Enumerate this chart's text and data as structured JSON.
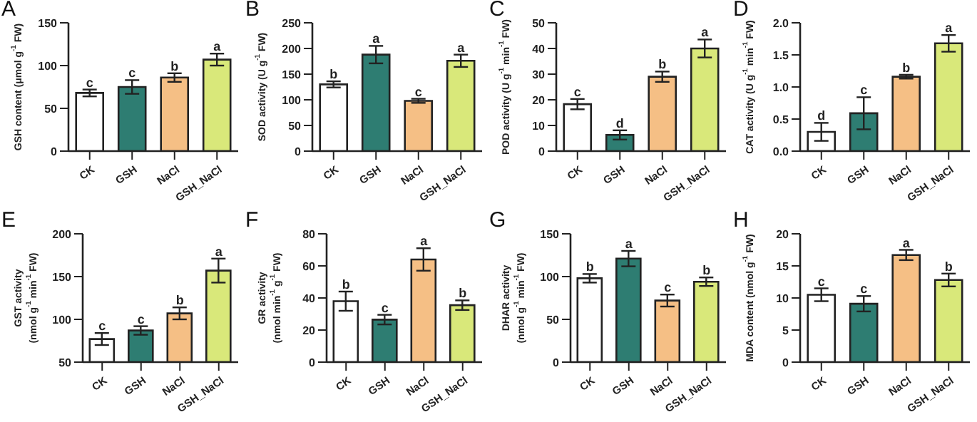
{
  "chart_data": [
    {
      "type": "bar",
      "title": "A",
      "ylabel": "GSH content (μmol g$^{-1}$ FW)",
      "categories": [
        "CK",
        "GSH",
        "NaCl",
        "GSH_NaCl"
      ],
      "values": [
        68,
        75,
        86,
        107
      ],
      "errors": [
        4,
        8,
        5,
        7
      ],
      "colors": [
        "#ffffff",
        "#2e7d72",
        "#f5bf85",
        "#d9e87a"
      ],
      "ylim": [
        0,
        150
      ],
      "yticks": [
        0,
        50,
        100,
        150
      ],
      "grid": false,
      "legend": false,
      "annotations": [
        {
          "text": "c",
          "x": "CK",
          "y": 72
        },
        {
          "text": "c",
          "x": "GSH",
          "y": 83
        },
        {
          "text": "b",
          "x": "NaCl",
          "y": 91
        },
        {
          "text": "a",
          "x": "GSH_NaCl",
          "y": 114
        }
      ]
    },
    {
      "type": "bar",
      "title": "B",
      "ylabel": "SOD activity (U g$^{-1}$ FW)",
      "categories": [
        "CK",
        "GSH",
        "NaCl",
        "GSH_NaCl"
      ],
      "values": [
        130,
        188,
        98,
        176
      ],
      "errors": [
        6,
        17,
        4,
        12
      ],
      "colors": [
        "#ffffff",
        "#2e7d72",
        "#f5bf85",
        "#d9e87a"
      ],
      "ylim": [
        0,
        250
      ],
      "yticks": [
        0,
        50,
        100,
        150,
        200,
        250
      ],
      "grid": false,
      "legend": false,
      "annotations": [
        {
          "text": "b",
          "x": "CK",
          "y": 136
        },
        {
          "text": "a",
          "x": "GSH",
          "y": 205
        },
        {
          "text": "c",
          "x": "NaCl",
          "y": 102
        },
        {
          "text": "a",
          "x": "GSH_NaCl",
          "y": 188
        }
      ]
    },
    {
      "type": "bar",
      "title": "C",
      "ylabel": "POD activity (U g$^{-1}$ min$^{-1}$ FW)",
      "categories": [
        "CK",
        "GSH",
        "NaCl",
        "GSH_NaCl"
      ],
      "values": [
        18.3,
        6.3,
        29,
        40
      ],
      "errors": [
        2,
        1.8,
        2,
        3.5
      ],
      "colors": [
        "#ffffff",
        "#2e7d72",
        "#f5bf85",
        "#d9e87a"
      ],
      "ylim": [
        0,
        50
      ],
      "yticks": [
        0,
        10,
        20,
        30,
        40,
        50
      ],
      "grid": false,
      "legend": false,
      "annotations": [
        {
          "text": "c",
          "x": "CK",
          "y": 20.3
        },
        {
          "text": "d",
          "x": "GSH",
          "y": 8.1
        },
        {
          "text": "b",
          "x": "NaCl",
          "y": 31
        },
        {
          "text": "a",
          "x": "GSH_NaCl",
          "y": 43.5
        }
      ]
    },
    {
      "type": "bar",
      "title": "D",
      "ylabel": "CAT activity (U g$^{-1}$ min$^{-1}$ FW)",
      "categories": [
        "CK",
        "GSH",
        "NaCl",
        "GSH_NaCl"
      ],
      "values": [
        0.3,
        0.59,
        1.16,
        1.68
      ],
      "errors": [
        0.14,
        0.25,
        0.03,
        0.13
      ],
      "colors": [
        "#ffffff",
        "#2e7d72",
        "#f5bf85",
        "#d9e87a"
      ],
      "ylim": [
        0,
        2
      ],
      "yticks": [
        {
          "value": 0,
          "label": "0.0"
        },
        {
          "value": 0.5,
          "label": "0.5"
        },
        {
          "value": 1,
          "label": "1.0"
        },
        {
          "value": 1.5,
          "label": "1.5"
        },
        {
          "value": 2,
          "label": "2.0"
        }
      ],
      "grid": false,
      "legend": false,
      "annotations": [
        {
          "text": "d",
          "x": "CK",
          "y": 0.44
        },
        {
          "text": "c",
          "x": "GSH",
          "y": 0.84
        },
        {
          "text": "b",
          "x": "NaCl",
          "y": 1.19
        },
        {
          "text": "a",
          "x": "GSH_NaCl",
          "y": 1.81
        }
      ]
    },
    {
      "type": "bar",
      "title": "E",
      "ylabel": "GST activity\n(nmol g$^{-1}$ min$^{-1}$ FW)",
      "categories": [
        "CK",
        "GSH",
        "NaCl",
        "GSH_NaCl"
      ],
      "values": [
        77,
        87,
        107,
        157
      ],
      "errors": [
        7,
        5,
        7,
        14
      ],
      "colors": [
        "#ffffff",
        "#2e7d72",
        "#f5bf85",
        "#d9e87a"
      ],
      "ylim": [
        50,
        200
      ],
      "yticks": [
        50,
        100,
        150,
        200
      ],
      "grid": false,
      "legend": false,
      "annotations": [
        {
          "text": "c",
          "x": "CK",
          "y": 84
        },
        {
          "text": "c",
          "x": "GSH",
          "y": 92
        },
        {
          "text": "b",
          "x": "NaCl",
          "y": 114
        },
        {
          "text": "a",
          "x": "GSH_NaCl",
          "y": 171
        }
      ]
    },
    {
      "type": "bar",
      "title": "F",
      "ylabel": "GR activity\n(nmol min$^{-1}$ g$^{-1}$ FW)",
      "categories": [
        "CK",
        "GSH",
        "NaCl",
        "GSH_NaCl"
      ],
      "values": [
        38,
        26.5,
        64,
        35.5
      ],
      "errors": [
        6,
        3,
        7,
        3
      ],
      "colors": [
        "#ffffff",
        "#2e7d72",
        "#f5bf85",
        "#d9e87a"
      ],
      "ylim": [
        0,
        80
      ],
      "yticks": [
        0,
        20,
        40,
        60,
        80
      ],
      "grid": false,
      "legend": false,
      "annotations": [
        {
          "text": "b",
          "x": "CK",
          "y": 44
        },
        {
          "text": "c",
          "x": "GSH",
          "y": 29.5
        },
        {
          "text": "a",
          "x": "NaCl",
          "y": 71
        },
        {
          "text": "b",
          "x": "GSH_NaCl",
          "y": 38.5
        }
      ]
    },
    {
      "type": "bar",
      "title": "G",
      "ylabel": "DHAR activity\n(nmol g$^{-1}$ min$^{-1}$ FW)",
      "categories": [
        "CK",
        "GSH",
        "NaCl",
        "GSH_NaCl"
      ],
      "values": [
        98,
        121,
        72,
        94
      ],
      "errors": [
        5,
        9,
        7,
        5
      ],
      "colors": [
        "#ffffff",
        "#2e7d72",
        "#f5bf85",
        "#d9e87a"
      ],
      "ylim": [
        0,
        150
      ],
      "yticks": [
        0,
        50,
        100,
        150
      ],
      "grid": false,
      "legend": false,
      "annotations": [
        {
          "text": "b",
          "x": "CK",
          "y": 103
        },
        {
          "text": "a",
          "x": "GSH",
          "y": 130
        },
        {
          "text": "c",
          "x": "NaCl",
          "y": 79
        },
        {
          "text": "b",
          "x": "GSH_NaCl",
          "y": 99
        }
      ]
    },
    {
      "type": "bar",
      "title": "H",
      "ylabel": "MDA content (nmol g$^{-1}$ FW)",
      "categories": [
        "CK",
        "GSH",
        "NaCl",
        "GSH_NaCl"
      ],
      "values": [
        10.5,
        9.1,
        16.7,
        12.8
      ],
      "errors": [
        1,
        1.2,
        0.8,
        1
      ],
      "colors": [
        "#ffffff",
        "#2e7d72",
        "#f5bf85",
        "#d9e87a"
      ],
      "ylim": [
        0,
        20
      ],
      "yticks": [
        0,
        5,
        10,
        15,
        20
      ],
      "grid": false,
      "legend": false,
      "annotations": [
        {
          "text": "c",
          "x": "CK",
          "y": 11.5
        },
        {
          "text": "c",
          "x": "GSH",
          "y": 10.3
        },
        {
          "text": "a",
          "x": "NaCl",
          "y": 17.5
        },
        {
          "text": "b",
          "x": "GSH_NaCl",
          "y": 13.8
        }
      ]
    }
  ]
}
